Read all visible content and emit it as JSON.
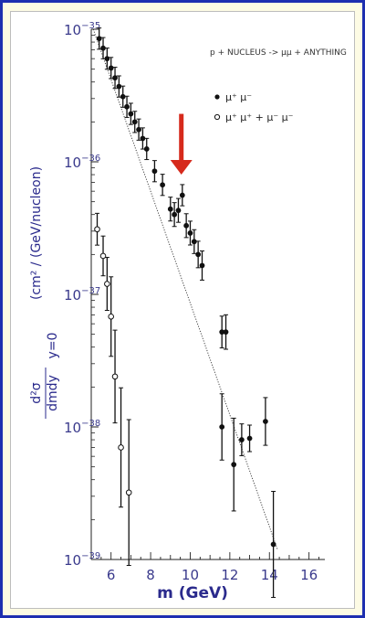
{
  "chart_data": {
    "type": "scatter",
    "title": "",
    "annotation": "p + NUCLEUS -> μμ + ANYTHING",
    "xlabel": "m (GeV)",
    "ylabel": "d²σ/dmdy y=0 (cm² / (GeV/nucleon)",
    "ylabel_parts": {
      "numerator": "d²σ",
      "denominator": "dmdy",
      "condition": "y=0",
      "units": "(cm² / (GeV/nucleon)"
    },
    "x_ticks": [
      6,
      8,
      10,
      12,
      14,
      16
    ],
    "y_ticks": [
      {
        "value": 1e-35,
        "base": "10",
        "exp": "−35"
      },
      {
        "value": 1e-36,
        "base": "10",
        "exp": "−36"
      },
      {
        "value": 1e-37,
        "base": "10",
        "exp": "−37"
      },
      {
        "value": 1e-38,
        "base": "10",
        "exp": "−38"
      },
      {
        "value": 1e-39,
        "base": "10",
        "exp": "−39"
      }
    ],
    "xlim": [
      5.0,
      16.8
    ],
    "ylim": [
      1e-39,
      1e-35
    ],
    "y_scale": "log",
    "grid": false,
    "legend_position": "top-right",
    "series": [
      {
        "name": "μ⁺ μ⁻",
        "marker": "filled-circle",
        "points": [
          {
            "x": 5.4,
            "y": 8.5e-36,
            "err": 0.08
          },
          {
            "x": 5.6,
            "y": 7.2e-36,
            "err": 0.08
          },
          {
            "x": 5.8,
            "y": 6e-36,
            "err": 0.08
          },
          {
            "x": 6.0,
            "y": 5.1e-36,
            "err": 0.08
          },
          {
            "x": 6.2,
            "y": 4.3e-36,
            "err": 0.08
          },
          {
            "x": 6.4,
            "y": 3.7e-36,
            "err": 0.08
          },
          {
            "x": 6.6,
            "y": 3.1e-36,
            "err": 0.08
          },
          {
            "x": 6.8,
            "y": 2.6e-36,
            "err": 0.08
          },
          {
            "x": 7.0,
            "y": 2.3e-36,
            "err": 0.08
          },
          {
            "x": 7.2,
            "y": 2e-36,
            "err": 0.08
          },
          {
            "x": 7.4,
            "y": 1.75e-36,
            "err": 0.08
          },
          {
            "x": 7.6,
            "y": 1.5e-36,
            "err": 0.08
          },
          {
            "x": 7.8,
            "y": 1.25e-36,
            "err": 0.08
          },
          {
            "x": 8.2,
            "y": 8.5e-37,
            "err": 0.08
          },
          {
            "x": 8.6,
            "y": 6.7e-37,
            "err": 0.08
          },
          {
            "x": 9.0,
            "y": 4.4e-37,
            "err": 0.09
          },
          {
            "x": 9.2,
            "y": 4e-37,
            "err": 0.09
          },
          {
            "x": 9.4,
            "y": 4.3e-37,
            "err": 0.09
          },
          {
            "x": 9.6,
            "y": 5.6e-37,
            "err": 0.08
          },
          {
            "x": 9.8,
            "y": 3.3e-37,
            "err": 0.09
          },
          {
            "x": 10.0,
            "y": 2.9e-37,
            "err": 0.09
          },
          {
            "x": 10.2,
            "y": 2.5e-37,
            "err": 0.09
          },
          {
            "x": 10.4,
            "y": 2e-37,
            "err": 0.1
          },
          {
            "x": 10.6,
            "y": 1.65e-37,
            "err": 0.11
          },
          {
            "x": 11.6,
            "y": 5.2e-38,
            "err": 0.12
          },
          {
            "x": 11.8,
            "y": 5.2e-38,
            "err": 0.13
          },
          {
            "x": 11.6,
            "y": 1e-38,
            "err": 0.25
          },
          {
            "x": 12.2,
            "y": 5.2e-39,
            "err": 0.35
          },
          {
            "x": 12.6,
            "y": 8e-39,
            "err": 0.12
          },
          {
            "x": 13.0,
            "y": 8.2e-39,
            "err": 0.1
          },
          {
            "x": 13.8,
            "y": 1.1e-38,
            "err": 0.18
          },
          {
            "x": 14.2,
            "y": 1.3e-39,
            "err": 0.4
          }
        ]
      },
      {
        "name": "μ⁺ μ⁺ + μ⁻ μ⁻",
        "marker": "open-circle",
        "points": [
          {
            "x": 5.3,
            "y": 3.1e-37,
            "err": 0.12
          },
          {
            "x": 5.6,
            "y": 1.95e-37,
            "err": 0.15
          },
          {
            "x": 5.8,
            "y": 1.2e-37,
            "err": 0.2
          },
          {
            "x": 6.0,
            "y": 6.8e-38,
            "err": 0.3
          },
          {
            "x": 6.2,
            "y": 2.4e-38,
            "err": 0.35
          },
          {
            "x": 6.5,
            "y": 7e-39,
            "err": 0.45
          },
          {
            "x": 6.9,
            "y": 3.2e-39,
            "err": 0.55
          }
        ]
      }
    ],
    "fit_line": {
      "style": "dotted",
      "from": {
        "x": 5.1,
        "y": 1e-35
      },
      "to": {
        "x": 14.4,
        "y": 1.2e-39
      }
    },
    "highlight_arrow": {
      "color": "#d62a1c",
      "x": 9.55,
      "from_y": 2.3e-36,
      "to_y": 8e-37
    },
    "colors": {
      "frame": "#1e2fb0",
      "background": "#fdfbe4",
      "labels": "#2a2a8c",
      "arrow": "#d62a1c"
    }
  }
}
